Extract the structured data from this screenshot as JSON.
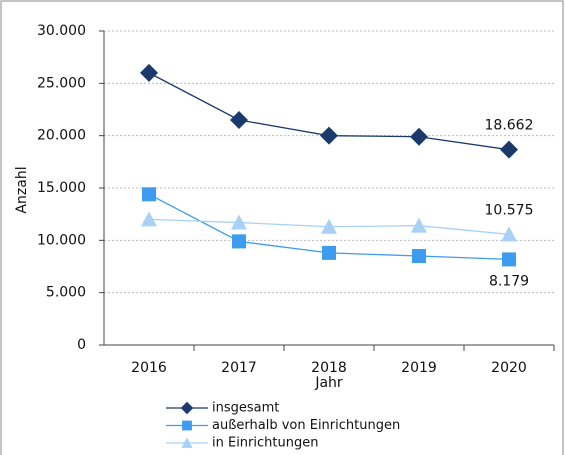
{
  "chart_data": {
    "type": "line",
    "x_label": "Jahr",
    "y_label": "Anzahl",
    "categories": [
      "2016",
      "2017",
      "2018",
      "2019",
      "2020"
    ],
    "series": [
      {
        "name": "insgesamt",
        "color": "#1b3a6b",
        "marker": "diamond",
        "values": [
          26000,
          21500,
          20000,
          19900,
          18662
        ],
        "value_labels": [
          null,
          null,
          null,
          null,
          "18.662"
        ]
      },
      {
        "name": "außerhalb von Einrichtungen",
        "color": "#3d9bf0",
        "marker": "square",
        "values": [
          14400,
          9900,
          8800,
          8500,
          8179
        ],
        "value_labels": [
          null,
          null,
          null,
          null,
          "8.179"
        ]
      },
      {
        "name": "in Einrichtungen",
        "color": "#a9d1f7",
        "marker": "triangle",
        "values": [
          12000,
          11700,
          11300,
          11400,
          10575
        ],
        "value_labels": [
          null,
          null,
          null,
          null,
          "10.575"
        ]
      }
    ],
    "ylim": [
      0,
      30000
    ],
    "yticks": [
      0,
      {
        "value": 5000,
        "label": "5.000"
      },
      {
        "value": 10000,
        "label": "10.000"
      },
      {
        "value": 15000,
        "label": "15.000"
      },
      {
        "value": 20000,
        "label": "20.000"
      },
      {
        "value": 25000,
        "label": "25.000"
      },
      {
        "value": 30000,
        "label": "30.000"
      }
    ],
    "grid": true,
    "legend": "bottom"
  }
}
